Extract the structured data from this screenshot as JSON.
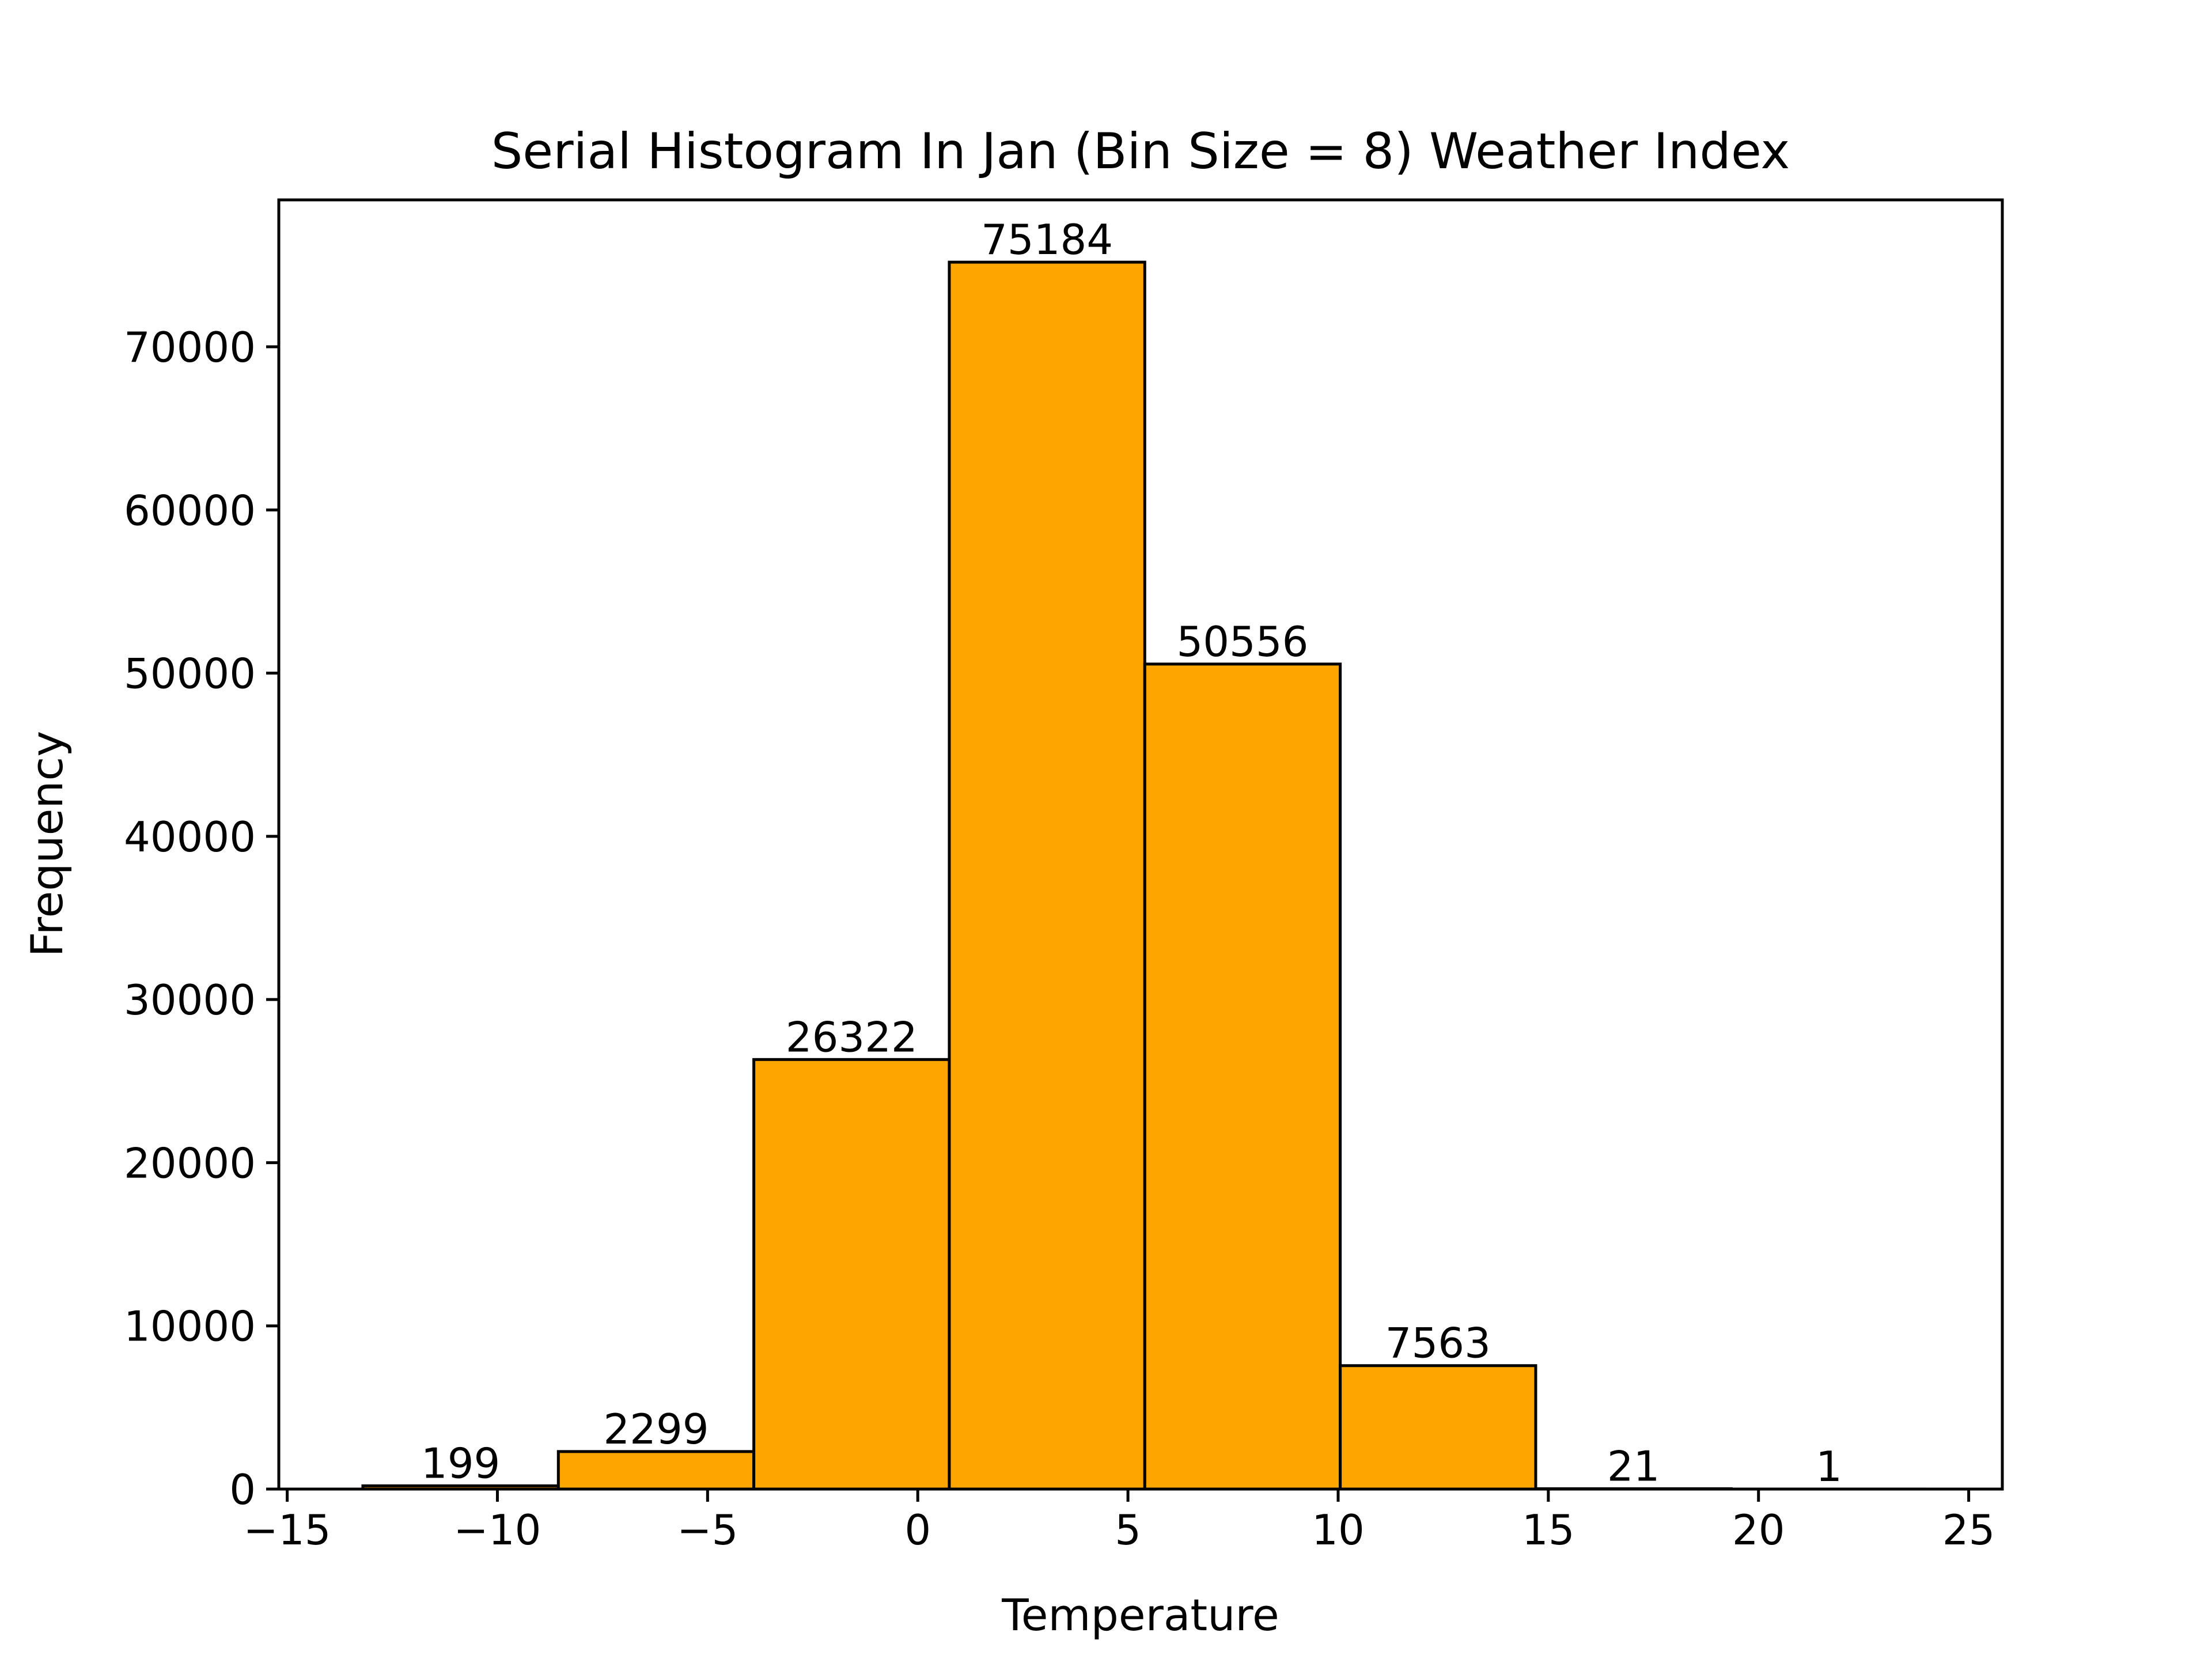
{
  "chart_data": {
    "type": "bar",
    "title": "Serial Histogram In Jan (Bin Size = 8) Weather Index",
    "xlabel": "Temperature",
    "ylabel": "Frequency",
    "bin_edges": [
      -13.2,
      -8.55,
      -3.9,
      0.75,
      5.4,
      10.05,
      14.7,
      19.35,
      24.0
    ],
    "values": [
      199,
      2299,
      26322,
      75184,
      50556,
      7563,
      21,
      1
    ],
    "xlim": [
      -15.2,
      25.8
    ],
    "ylim": [
      0,
      79000
    ],
    "xticks": [
      -15,
      -10,
      -5,
      0,
      5,
      10,
      15,
      20,
      25
    ],
    "xtick_labels": [
      "−15",
      "−10",
      "−5",
      "0",
      "5",
      "10",
      "15",
      "20",
      "25"
    ],
    "yticks": [
      0,
      10000,
      20000,
      30000,
      40000,
      50000,
      60000,
      70000
    ],
    "ytick_labels": [
      "0",
      "10000",
      "20000",
      "30000",
      "40000",
      "50000",
      "60000",
      "70000"
    ],
    "bar_color": "#FFA500",
    "edge_color": "#000000",
    "grid": false,
    "legend": "none"
  }
}
